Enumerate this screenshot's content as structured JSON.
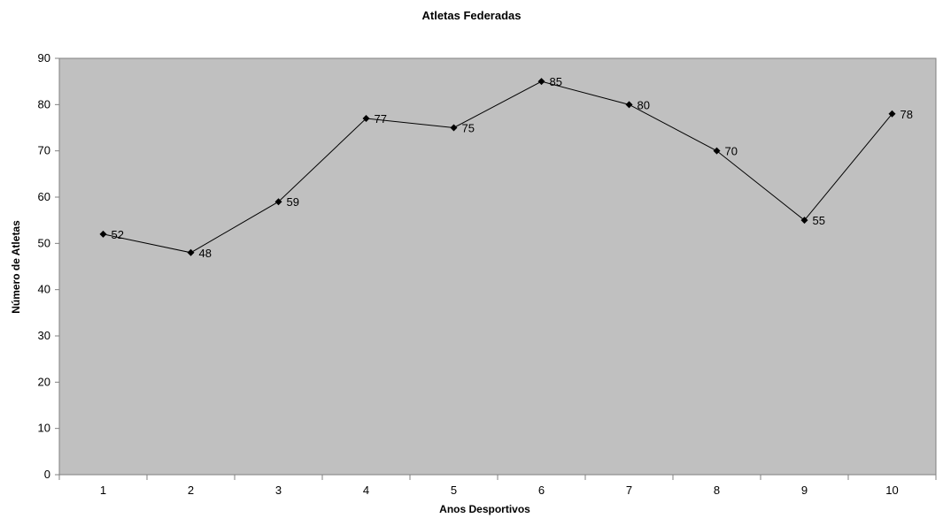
{
  "chart_data": {
    "type": "line",
    "title": "Atletas Federadas",
    "xlabel": "Anos Desportivos",
    "ylabel": "Número de Atletas",
    "categories": [
      "1",
      "2",
      "3",
      "4",
      "5",
      "6",
      "7",
      "8",
      "9",
      "10"
    ],
    "series": [
      {
        "values": [
          52,
          48,
          59,
          77,
          75,
          85,
          80,
          70,
          55,
          78
        ]
      }
    ],
    "ylim": [
      0,
      90
    ],
    "yticks": [
      0,
      10,
      20,
      30,
      40,
      50,
      60,
      70,
      80,
      90
    ],
    "data_labels": true,
    "grid": false,
    "legend": "none",
    "colors": {
      "plot_background": "#c0c0c0",
      "series_line": "#000000",
      "axis": "#808080"
    }
  }
}
